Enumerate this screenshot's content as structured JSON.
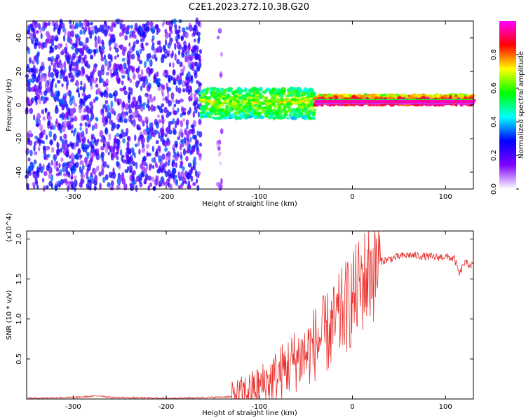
{
  "title": "C2E1.2023.272.10.38.G20",
  "chart_data": [
    {
      "type": "heatmap",
      "xlabel": "Height of straight line (km)",
      "ylabel": "Frequency (Hz)",
      "xlim": [
        -350,
        130
      ],
      "ylim": [
        -50,
        50
      ],
      "xticks": [
        -300,
        -200,
        -100,
        0,
        100
      ],
      "yticks": [
        -40,
        -20,
        0,
        20,
        40
      ],
      "colorbar": {
        "label": "Normalized spectral amplitude",
        "range": [
          0.0,
          1.0
        ],
        "ticks": [
          "0.0",
          "0.2",
          "0.4",
          "0.6",
          "0.8"
        ],
        "colors": [
          "#ffffff",
          "#8000ff",
          "#0000ff",
          "#00ffff",
          "#00ff00",
          "#ffff00",
          "#ff0000",
          "#ff00ff"
        ]
      },
      "regions": [
        {
          "x_range": [
            -350,
            -163
          ],
          "description_level": 0.25,
          "freq_spread": [
            -50,
            50
          ]
        },
        {
          "x_range": [
            -145,
            -140
          ],
          "description_level": 0.1,
          "freq_spread": [
            -50,
            50
          ]
        },
        {
          "x_range": [
            -163,
            -40
          ],
          "description_level": 0.6,
          "freq_center": 2,
          "freq_spread": [
            -10,
            8
          ]
        },
        {
          "x_range": [
            -40,
            130
          ],
          "description_level": 0.95,
          "freq_center": 2,
          "freq_spread": [
            -2,
            4
          ]
        }
      ],
      "grid": false
    },
    {
      "type": "line",
      "xlabel": "Height of straight line (km)",
      "ylabel": "SNR (10 * v/v)",
      "y_multiplier": "(x10^4)",
      "xlim": [
        -350,
        130
      ],
      "ylim": [
        0,
        2.1
      ],
      "xticks": [
        -300,
        -200,
        -100,
        0,
        100
      ],
      "yticks": [
        0.5,
        1.0,
        1.5,
        2.0
      ],
      "ytick_labels": [
        "0.5",
        "1.0",
        "1.5",
        "2.0"
      ],
      "series": [
        {
          "color": "#e8312c",
          "x": [
            -350,
            -300,
            -270,
            -260,
            -200,
            -150,
            -130,
            -120,
            -110,
            -100,
            -90,
            -80,
            -70,
            -60,
            -50,
            -40,
            -30,
            -20,
            -10,
            0,
            10,
            20,
            30,
            40,
            50,
            60,
            70,
            80,
            90,
            100,
            110,
            115,
            120,
            130
          ],
          "y": [
            0.01,
            0.02,
            0.04,
            0.02,
            0.01,
            0.02,
            0.03,
            0.07,
            0.1,
            0.15,
            0.22,
            0.3,
            0.4,
            0.5,
            0.55,
            0.7,
            0.8,
            0.9,
            1.1,
            1.25,
            1.45,
            1.6,
            1.72,
            1.75,
            1.78,
            1.8,
            1.79,
            1.78,
            1.77,
            1.78,
            1.75,
            1.55,
            1.7,
            1.67
          ]
        }
      ],
      "grid": false
    }
  ]
}
